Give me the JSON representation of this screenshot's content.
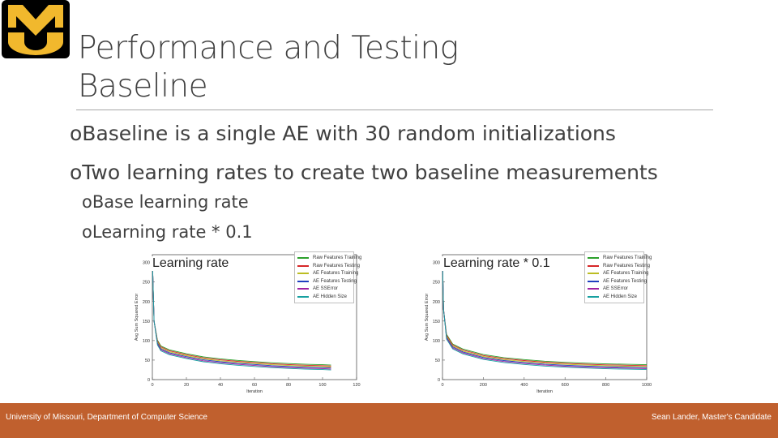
{
  "logo": {
    "letters": "MU",
    "colors": {
      "fill": "#f1b82d",
      "outline": "#000000"
    }
  },
  "slide": {
    "title_line1": "Performance and Testing",
    "title_line2": "Baseline",
    "bullets": [
      {
        "mark": "o",
        "text": "Baseline is a single AE with 30 random initializations"
      },
      {
        "mark": "o",
        "text": "Two learning rates to create two baseline measurements"
      }
    ],
    "sub_bullets": [
      {
        "mark": "o",
        "text": "Base learning rate"
      },
      {
        "mark": "o",
        "text": "Learning rate * 0.1"
      }
    ]
  },
  "chart_data": [
    {
      "type": "line",
      "title": "Learning rate",
      "xlabel": "Iteration",
      "ylabel": "Avg Sum Squared Error",
      "xlim": [
        0,
        120
      ],
      "ylim": [
        0,
        320
      ],
      "xticks": [
        "0",
        "20",
        "40",
        "60",
        "80",
        "100",
        "120"
      ],
      "yticks": [
        "0",
        "50",
        "100",
        "150",
        "200",
        "250",
        "300"
      ],
      "legend": [
        "Raw Features Training",
        "Raw Features Testing",
        "AE Features Training",
        "AE Features Testing",
        "AE SSError",
        "AE Hidden Size"
      ],
      "legend_colors": [
        "#2ca02c",
        "#d62728",
        "#bcbd22",
        "#1f3fbf",
        "#a020a0",
        "#17a0a0"
      ],
      "series": [
        {
          "x": [
            0,
            1,
            3,
            5,
            10,
            20,
            30,
            40,
            50,
            60,
            70,
            80,
            90,
            100,
            105
          ],
          "y": [
            310,
            150,
            95,
            80,
            70,
            60,
            52,
            47,
            43,
            40,
            37,
            35,
            33,
            32,
            31
          ]
        }
      ]
    },
    {
      "type": "line",
      "title": "Learning rate * 0.1",
      "xlabel": "Iteration",
      "ylabel": "Avg Sum Squared Error",
      "xlim": [
        0,
        1000
      ],
      "ylim": [
        0,
        320
      ],
      "xticks": [
        "0",
        "200",
        "400",
        "600",
        "800",
        "1000"
      ],
      "yticks": [
        "0",
        "50",
        "100",
        "150",
        "200",
        "250",
        "300"
      ],
      "legend": [
        "Raw Features Training",
        "Raw Features Testing",
        "AE Features Training",
        "AE Features Testing",
        "AE SSError",
        "AE Hidden Size"
      ],
      "legend_colors": [
        "#2ca02c",
        "#d62728",
        "#bcbd22",
        "#1f3fbf",
        "#a020a0",
        "#17a0a0"
      ],
      "series": [
        {
          "x": [
            0,
            5,
            20,
            50,
            100,
            200,
            300,
            400,
            500,
            600,
            700,
            800,
            900,
            1000
          ],
          "y": [
            310,
            180,
            110,
            85,
            72,
            58,
            50,
            45,
            41,
            38,
            36,
            34,
            33,
            32
          ]
        }
      ]
    }
  ],
  "footer": {
    "left": "University of Missouri, Department of Computer Science",
    "right": "Sean Lander, Master's Candidate",
    "color": "#c0602e"
  }
}
